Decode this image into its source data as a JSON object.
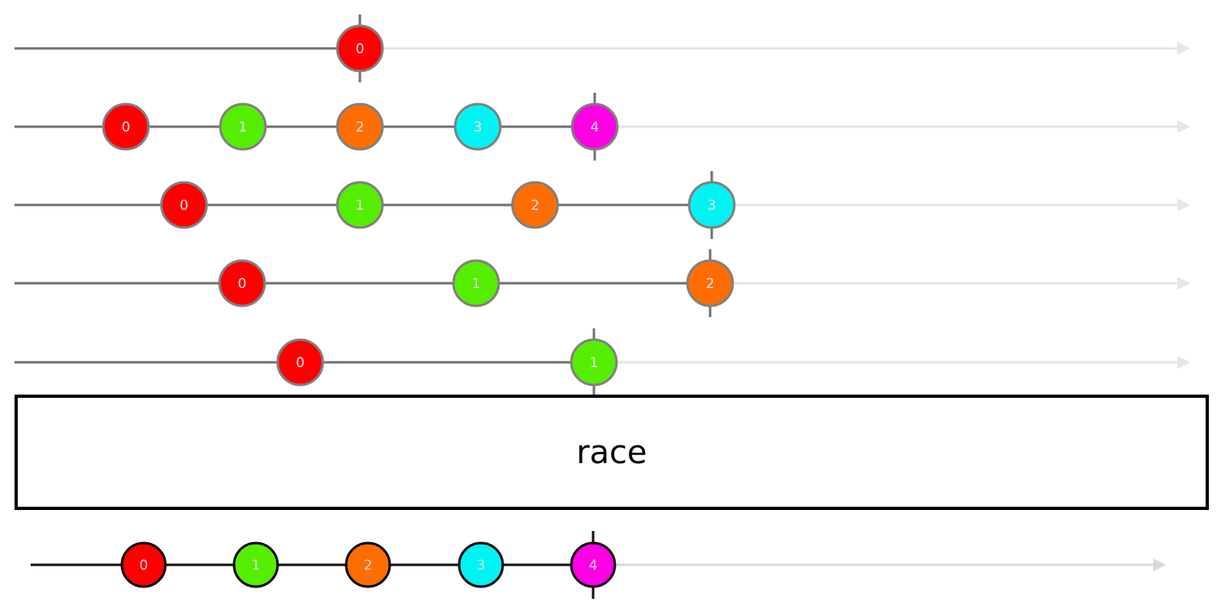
{
  "operator": {
    "label": "race"
  },
  "colors": {
    "value_0": "#ff0000",
    "value_1": "#55ee00",
    "value_2": "#ff6d00",
    "value_3": "#00f3f3",
    "value_4": "#ff00e4",
    "active_line": "#707070",
    "inactive_line": "#e6e6e6",
    "output_line": "#111111",
    "output_tail": "#d8d8d8"
  },
  "input_streams": [
    {
      "events": [
        {
          "label": "0"
        }
      ],
      "completed_at": 0
    },
    {
      "events": [
        {
          "label": "0"
        },
        {
          "label": "1"
        },
        {
          "label": "2"
        },
        {
          "label": "3"
        },
        {
          "label": "4"
        }
      ],
      "completed_at": 4
    },
    {
      "events": [
        {
          "label": "0"
        },
        {
          "label": "1"
        },
        {
          "label": "2"
        },
        {
          "label": "3"
        }
      ],
      "completed_at": 3
    },
    {
      "events": [
        {
          "label": "0"
        },
        {
          "label": "1"
        },
        {
          "label": "2"
        }
      ],
      "completed_at": 2
    },
    {
      "events": [
        {
          "label": "0"
        },
        {
          "label": "1"
        }
      ],
      "completed_at": 1
    }
  ],
  "output_stream": {
    "events": [
      {
        "label": "0"
      },
      {
        "label": "1"
      },
      {
        "label": "2"
      },
      {
        "label": "3"
      },
      {
        "label": "4"
      }
    ],
    "completed_at": 4
  }
}
